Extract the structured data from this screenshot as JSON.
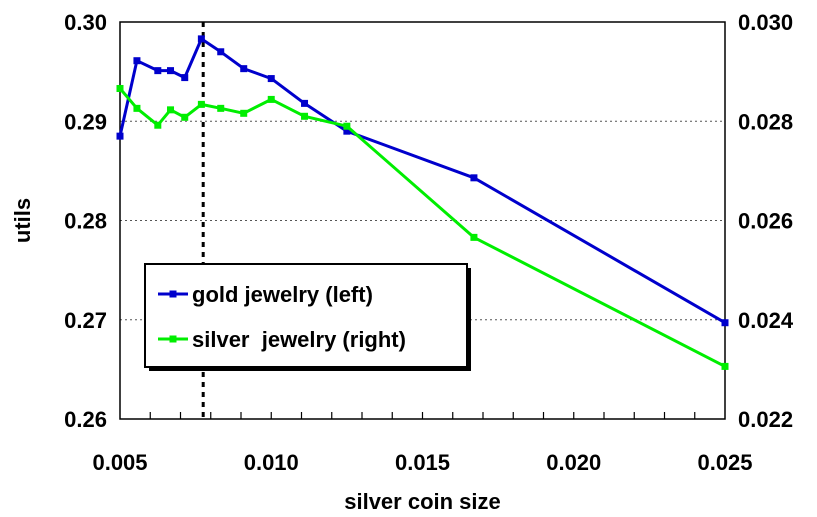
{
  "chart_data": {
    "type": "line",
    "xlabel": "silver coin size",
    "ylabel": "utils",
    "xlim": [
      0.005,
      0.025
    ],
    "ylim_left": [
      0.26,
      0.3
    ],
    "ylim_right": [
      0.022,
      0.03
    ],
    "x_ticks": [
      "0.005",
      "0.010",
      "0.015",
      "0.020",
      "0.025"
    ],
    "y_ticks_left": [
      "0.26",
      "0.27",
      "0.28",
      "0.29",
      "0.30"
    ],
    "y_ticks_right": [
      "0.022",
      "0.024",
      "0.026",
      "0.028",
      "0.030"
    ],
    "x_minor_step": 0.001,
    "grid": "horizontal dotted",
    "vline_x": 0.00775,
    "legend_position": "lower-left",
    "series": [
      {
        "name": "gold jewelry (left)",
        "axis": "left",
        "color": "#0000cc",
        "points": [
          [
            0.005,
            0.2885
          ],
          [
            0.00556,
            0.2961
          ],
          [
            0.00625,
            0.2951
          ],
          [
            0.00667,
            0.2951
          ],
          [
            0.00714,
            0.2944
          ],
          [
            0.00769,
            0.2983
          ],
          [
            0.00833,
            0.297
          ],
          [
            0.00909,
            0.2953
          ],
          [
            0.01,
            0.2943
          ],
          [
            0.0111,
            0.2918
          ],
          [
            0.0125,
            0.289
          ],
          [
            0.0167,
            0.2843
          ],
          [
            0.025,
            0.2697
          ]
        ]
      },
      {
        "name": "silver  jewelry (right)",
        "axis": "right",
        "color": "#00ee00",
        "points": [
          [
            0.005,
            0.02866
          ],
          [
            0.00556,
            0.02826
          ],
          [
            0.00625,
            0.02792
          ],
          [
            0.00667,
            0.02823
          ],
          [
            0.00714,
            0.02808
          ],
          [
            0.00769,
            0.02834
          ],
          [
            0.00833,
            0.02826
          ],
          [
            0.00909,
            0.02816
          ],
          [
            0.01,
            0.02844
          ],
          [
            0.0111,
            0.0281
          ],
          [
            0.0125,
            0.0279
          ],
          [
            0.0167,
            0.02566
          ],
          [
            0.025,
            0.02306
          ]
        ]
      }
    ]
  }
}
